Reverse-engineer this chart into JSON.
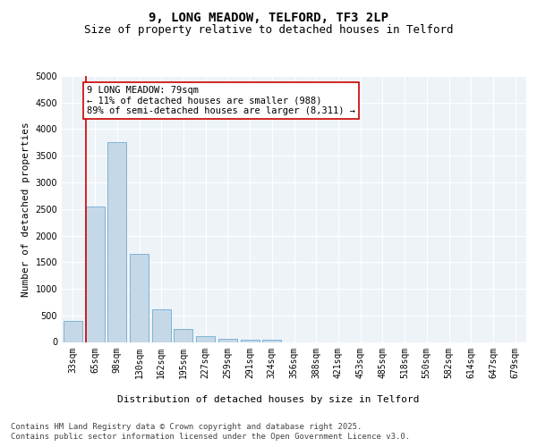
{
  "title_line1": "9, LONG MEADOW, TELFORD, TF3 2LP",
  "title_line2": "Size of property relative to detached houses in Telford",
  "xlabel": "Distribution of detached houses by size in Telford",
  "ylabel": "Number of detached properties",
  "categories": [
    "33sqm",
    "65sqm",
    "98sqm",
    "130sqm",
    "162sqm",
    "195sqm",
    "227sqm",
    "259sqm",
    "291sqm",
    "324sqm",
    "356sqm",
    "388sqm",
    "421sqm",
    "453sqm",
    "485sqm",
    "518sqm",
    "550sqm",
    "582sqm",
    "614sqm",
    "647sqm",
    "679sqm"
  ],
  "values": [
    390,
    2540,
    3760,
    1650,
    620,
    240,
    110,
    55,
    40,
    40,
    0,
    0,
    0,
    0,
    0,
    0,
    0,
    0,
    0,
    0,
    0
  ],
  "bar_color": "#c5d8e8",
  "bar_edge_color": "#5a9ec9",
  "vline_color": "#cc0000",
  "annotation_text": "9 LONG MEADOW: 79sqm\n← 11% of detached houses are smaller (988)\n89% of semi-detached houses are larger (8,311) →",
  "annotation_box_color": "#ffffff",
  "annotation_box_edge": "#cc0000",
  "ylim": [
    0,
    5000
  ],
  "yticks": [
    0,
    500,
    1000,
    1500,
    2000,
    2500,
    3000,
    3500,
    4000,
    4500,
    5000
  ],
  "background_color": "#eef3f8",
  "grid_color": "#ffffff",
  "footer_line1": "Contains HM Land Registry data © Crown copyright and database right 2025.",
  "footer_line2": "Contains public sector information licensed under the Open Government Licence v3.0.",
  "title_fontsize": 10,
  "subtitle_fontsize": 9,
  "axis_label_fontsize": 8,
  "tick_fontsize": 7,
  "annotation_fontsize": 7.5,
  "footer_fontsize": 6.5
}
